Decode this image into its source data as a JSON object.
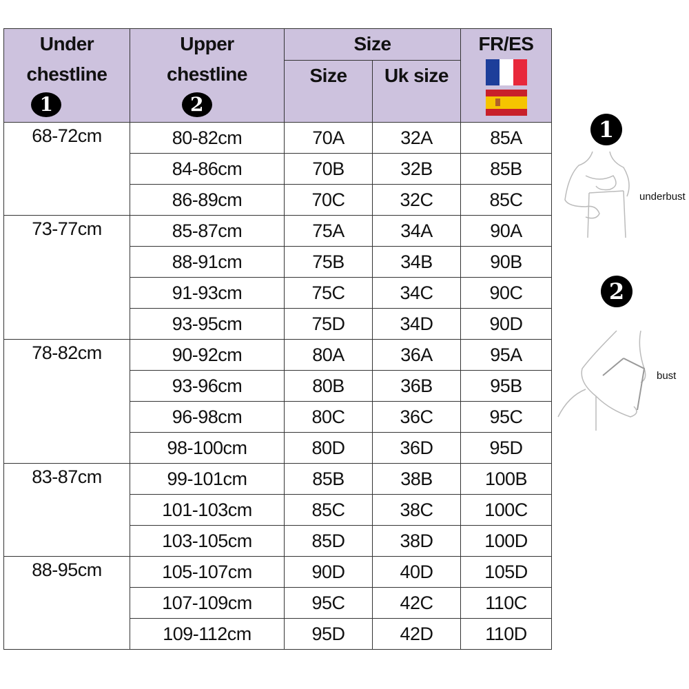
{
  "header": {
    "under": "Under chestline",
    "under_badge": "1",
    "upper": "Upper chestline",
    "upper_badge": "2",
    "size_group": "Size",
    "size": "Size",
    "uk_size": "Uk size",
    "fr_es": "FR/ES",
    "flags": [
      "france-flag-icon",
      "spain-flag-icon"
    ]
  },
  "colors": {
    "header_bg": "#cdc2de"
  },
  "groups": [
    {
      "under": "68-72cm",
      "rows": [
        [
          "80-82cm",
          "70A",
          "32A",
          "85A"
        ],
        [
          "84-86cm",
          "70B",
          "32B",
          "85B"
        ],
        [
          "86-89cm",
          "70C",
          "32C",
          "85C"
        ]
      ]
    },
    {
      "under": "73-77cm",
      "rows": [
        [
          "85-87cm",
          "75A",
          "34A",
          "90A"
        ],
        [
          "88-91cm",
          "75B",
          "34B",
          "90B"
        ],
        [
          "91-93cm",
          "75C",
          "34C",
          "90C"
        ],
        [
          "93-95cm",
          "75D",
          "34D",
          "90D"
        ]
      ]
    },
    {
      "under": "78-82cm",
      "rows": [
        [
          "90-92cm",
          "80A",
          "36A",
          "95A"
        ],
        [
          "93-96cm",
          "80B",
          "36B",
          "95B"
        ],
        [
          "96-98cm",
          "80C",
          "36C",
          "95C"
        ],
        [
          "98-100cm",
          "80D",
          "36D",
          "95D"
        ]
      ]
    },
    {
      "under": "83-87cm",
      "rows": [
        [
          "99-101cm",
          "85B",
          "38B",
          "100B"
        ],
        [
          "101-103cm",
          "85C",
          "38C",
          "100C"
        ],
        [
          "103-105cm",
          "85D",
          "38D",
          "100D"
        ]
      ]
    },
    {
      "under": "88-95cm",
      "rows": [
        [
          "105-107cm",
          "90D",
          "40D",
          "105D"
        ],
        [
          "107-109cm",
          "95C",
          "42C",
          "110C"
        ],
        [
          "109-112cm",
          "95D",
          "42D",
          "110D"
        ]
      ]
    }
  ],
  "guide": [
    {
      "badge": "1",
      "label": "underbust"
    },
    {
      "badge": "2",
      "label": "bust"
    }
  ]
}
